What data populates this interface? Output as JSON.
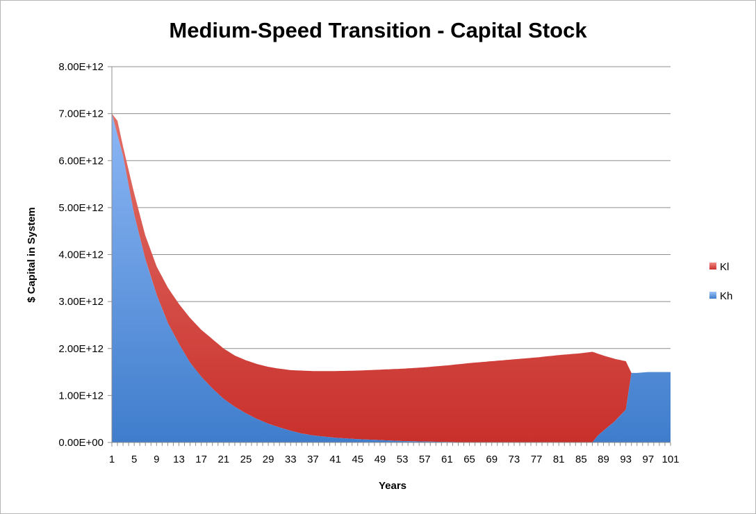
{
  "chart_data": {
    "type": "area",
    "stacked": true,
    "title": "Medium-Speed Transition - Capital Stock",
    "xlabel": "Years",
    "ylabel": "$ Capital in System",
    "x_range": [
      1,
      101
    ],
    "x_ticks": [
      "1",
      "5",
      "9",
      "13",
      "17",
      "21",
      "25",
      "29",
      "33",
      "37",
      "41",
      "45",
      "49",
      "53",
      "57",
      "61",
      "65",
      "69",
      "73",
      "77",
      "81",
      "85",
      "89",
      "93",
      "97",
      "101"
    ],
    "y_ticks": [
      "0.00E+00",
      "1.00E+12",
      "2.00E+12",
      "3.00E+12",
      "4.00E+12",
      "5.00E+12",
      "6.00E+12",
      "7.00E+12",
      "8.00E+12"
    ],
    "ylim": [
      0,
      8000000000000.0
    ],
    "grid": true,
    "legend_position": "right",
    "series": [
      {
        "name": "Kh",
        "color": "#4a86d4",
        "points": [
          [
            1,
            7000000000000.0
          ],
          [
            3,
            6100000000000.0
          ],
          [
            5,
            4850000000000.0
          ],
          [
            7,
            3900000000000.0
          ],
          [
            9,
            3150000000000.0
          ],
          [
            11,
            2550000000000.0
          ],
          [
            13,
            2100000000000.0
          ],
          [
            15,
            1700000000000.0
          ],
          [
            17,
            1400000000000.0
          ],
          [
            19,
            1150000000000.0
          ],
          [
            21,
            930000000000.0
          ],
          [
            23,
            760000000000.0
          ],
          [
            25,
            620000000000.0
          ],
          [
            27,
            500000000000.0
          ],
          [
            29,
            400000000000.0
          ],
          [
            31,
            320000000000.0
          ],
          [
            33,
            250000000000.0
          ],
          [
            35,
            190000000000.0
          ],
          [
            37,
            150000000000.0
          ],
          [
            41,
            100000000000.0
          ],
          [
            45,
            70000000000.0
          ],
          [
            49,
            50000000000.0
          ],
          [
            53,
            30000000000.0
          ],
          [
            57,
            20000000000.0
          ],
          [
            61,
            10000000000.0
          ],
          [
            65,
            5000000000.0
          ],
          [
            87,
            0.0
          ],
          [
            88,
            150000000000.0
          ],
          [
            91,
            450000000000.0
          ],
          [
            93,
            700000000000.0
          ],
          [
            94,
            1480000000000.0
          ],
          [
            95,
            1480000000000.0
          ],
          [
            97,
            1500000000000.0
          ],
          [
            99,
            1500000000000.0
          ],
          [
            101,
            1500000000000.0
          ]
        ]
      },
      {
        "name": "Kl",
        "color": "#d43a35",
        "total_points": [
          [
            1,
            7000000000000.0
          ],
          [
            2,
            6850000000000.0
          ],
          [
            3,
            6300000000000.0
          ],
          [
            5,
            5300000000000.0
          ],
          [
            7,
            4400000000000.0
          ],
          [
            9,
            3750000000000.0
          ],
          [
            11,
            3300000000000.0
          ],
          [
            13,
            2950000000000.0
          ],
          [
            15,
            2650000000000.0
          ],
          [
            17,
            2400000000000.0
          ],
          [
            19,
            2200000000000.0
          ],
          [
            21,
            2000000000000.0
          ],
          [
            23,
            1850000000000.0
          ],
          [
            25,
            1750000000000.0
          ],
          [
            27,
            1670000000000.0
          ],
          [
            29,
            1610000000000.0
          ],
          [
            31,
            1570000000000.0
          ],
          [
            33,
            1540000000000.0
          ],
          [
            37,
            1520000000000.0
          ],
          [
            41,
            1520000000000.0
          ],
          [
            45,
            1530000000000.0
          ],
          [
            49,
            1550000000000.0
          ],
          [
            53,
            1570000000000.0
          ],
          [
            57,
            1600000000000.0
          ],
          [
            61,
            1640000000000.0
          ],
          [
            65,
            1690000000000.0
          ],
          [
            69,
            1730000000000.0
          ],
          [
            73,
            1770000000000.0
          ],
          [
            77,
            1810000000000.0
          ],
          [
            81,
            1860000000000.0
          ],
          [
            85,
            1900000000000.0
          ],
          [
            87,
            1930000000000.0
          ],
          [
            89,
            1850000000000.0
          ],
          [
            91,
            1780000000000.0
          ],
          [
            93,
            1730000000000.0
          ],
          [
            94,
            1480000000000.0
          ]
        ]
      }
    ],
    "legend": [
      {
        "name": "Kl",
        "color": "#d43a35"
      },
      {
        "name": "Kh",
        "color": "#4a86d4"
      }
    ]
  }
}
